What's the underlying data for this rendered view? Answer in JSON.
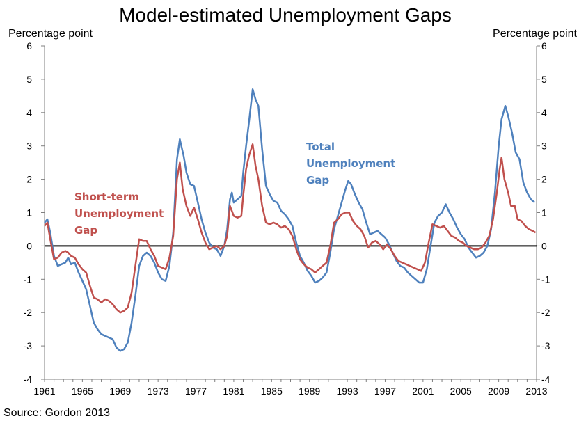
{
  "colors": {
    "total": "#4F81BD",
    "short": "#C0504D",
    "axis": "#7f7f7f",
    "zero": "#000000"
  },
  "chart_data": {
    "type": "line",
    "title": "Model-estimated Unemployment Gaps",
    "ylabel_left": "Percentage point",
    "ylabel_right": "Percentage point",
    "source": "Source: Gordon 2013",
    "xlim": [
      1961,
      2013
    ],
    "ylim": [
      -4,
      6
    ],
    "x_ticks": [
      1961,
      1965,
      1969,
      1973,
      1977,
      1981,
      1985,
      1989,
      1993,
      1997,
      2001,
      2005,
      2009,
      2013
    ],
    "y_ticks": [
      6,
      5,
      4,
      3,
      2,
      1,
      0,
      -1,
      -2,
      -3,
      -4
    ],
    "annotations": {
      "total": [
        "Total",
        "Unemployment",
        "Gap"
      ],
      "short": [
        "Short-term",
        "Unemployment",
        "Gap"
      ]
    },
    "series": [
      {
        "name": "Total Unemployment Gap",
        "color": "#4F81BD",
        "points": [
          [
            1961.0,
            0.7
          ],
          [
            1961.3,
            0.8
          ],
          [
            1961.6,
            0.4
          ],
          [
            1962.0,
            -0.3
          ],
          [
            1962.4,
            -0.6
          ],
          [
            1962.8,
            -0.55
          ],
          [
            1963.2,
            -0.5
          ],
          [
            1963.5,
            -0.35
          ],
          [
            1963.8,
            -0.55
          ],
          [
            1964.2,
            -0.5
          ],
          [
            1964.6,
            -0.8
          ],
          [
            1965.0,
            -1.05
          ],
          [
            1965.4,
            -1.3
          ],
          [
            1965.8,
            -1.8
          ],
          [
            1966.2,
            -2.3
          ],
          [
            1966.6,
            -2.5
          ],
          [
            1967.0,
            -2.65
          ],
          [
            1967.4,
            -2.7
          ],
          [
            1967.8,
            -2.75
          ],
          [
            1968.2,
            -2.8
          ],
          [
            1968.6,
            -3.05
          ],
          [
            1969.0,
            -3.15
          ],
          [
            1969.4,
            -3.1
          ],
          [
            1969.8,
            -2.9
          ],
          [
            1970.2,
            -2.3
          ],
          [
            1970.6,
            -1.5
          ],
          [
            1971.0,
            -0.6
          ],
          [
            1971.4,
            -0.3
          ],
          [
            1971.8,
            -0.2
          ],
          [
            1972.2,
            -0.3
          ],
          [
            1972.6,
            -0.5
          ],
          [
            1973.0,
            -0.8
          ],
          [
            1973.4,
            -1.0
          ],
          [
            1973.8,
            -1.05
          ],
          [
            1974.2,
            -0.6
          ],
          [
            1974.6,
            0.4
          ],
          [
            1975.0,
            2.6
          ],
          [
            1975.3,
            3.2
          ],
          [
            1975.7,
            2.7
          ],
          [
            1976.0,
            2.2
          ],
          [
            1976.4,
            1.85
          ],
          [
            1976.8,
            1.8
          ],
          [
            1977.2,
            1.3
          ],
          [
            1977.6,
            0.8
          ],
          [
            1978.0,
            0.4
          ],
          [
            1978.4,
            0.1
          ],
          [
            1978.8,
            -0.05
          ],
          [
            1979.2,
            -0.1
          ],
          [
            1979.6,
            -0.3
          ],
          [
            1980.0,
            0.0
          ],
          [
            1980.3,
            0.5
          ],
          [
            1980.6,
            1.4
          ],
          [
            1980.8,
            1.6
          ],
          [
            1981.0,
            1.3
          ],
          [
            1981.4,
            1.4
          ],
          [
            1981.8,
            1.5
          ],
          [
            1982.0,
            2.2
          ],
          [
            1982.3,
            3.0
          ],
          [
            1982.6,
            3.7
          ],
          [
            1982.8,
            4.2
          ],
          [
            1983.0,
            4.7
          ],
          [
            1983.3,
            4.4
          ],
          [
            1983.6,
            4.2
          ],
          [
            1984.0,
            2.9
          ],
          [
            1984.4,
            1.8
          ],
          [
            1984.8,
            1.55
          ],
          [
            1985.2,
            1.35
          ],
          [
            1985.6,
            1.3
          ],
          [
            1986.0,
            1.05
          ],
          [
            1986.4,
            0.95
          ],
          [
            1986.8,
            0.8
          ],
          [
            1987.2,
            0.6
          ],
          [
            1987.6,
            0.1
          ],
          [
            1988.0,
            -0.3
          ],
          [
            1988.4,
            -0.5
          ],
          [
            1988.8,
            -0.75
          ],
          [
            1989.2,
            -0.9
          ],
          [
            1989.6,
            -1.1
          ],
          [
            1990.0,
            -1.05
          ],
          [
            1990.4,
            -0.95
          ],
          [
            1990.8,
            -0.8
          ],
          [
            1991.2,
            -0.2
          ],
          [
            1991.6,
            0.5
          ],
          [
            1992.0,
            0.9
          ],
          [
            1992.4,
            1.3
          ],
          [
            1992.8,
            1.7
          ],
          [
            1993.1,
            1.95
          ],
          [
            1993.4,
            1.85
          ],
          [
            1993.8,
            1.55
          ],
          [
            1994.2,
            1.3
          ],
          [
            1994.6,
            1.1
          ],
          [
            1995.0,
            0.7
          ],
          [
            1995.4,
            0.35
          ],
          [
            1995.8,
            0.4
          ],
          [
            1996.2,
            0.45
          ],
          [
            1996.6,
            0.35
          ],
          [
            1997.0,
            0.25
          ],
          [
            1997.4,
            0.05
          ],
          [
            1997.8,
            -0.2
          ],
          [
            1998.2,
            -0.45
          ],
          [
            1998.6,
            -0.6
          ],
          [
            1999.0,
            -0.65
          ],
          [
            1999.4,
            -0.8
          ],
          [
            1999.8,
            -0.9
          ],
          [
            2000.2,
            -1.0
          ],
          [
            2000.6,
            -1.1
          ],
          [
            2001.0,
            -1.1
          ],
          [
            2001.4,
            -0.7
          ],
          [
            2001.8,
            0.0
          ],
          [
            2002.2,
            0.7
          ],
          [
            2002.6,
            0.9
          ],
          [
            2003.0,
            1.0
          ],
          [
            2003.4,
            1.25
          ],
          [
            2003.8,
            1.0
          ],
          [
            2004.2,
            0.8
          ],
          [
            2004.6,
            0.55
          ],
          [
            2005.0,
            0.35
          ],
          [
            2005.4,
            0.2
          ],
          [
            2005.8,
            -0.05
          ],
          [
            2006.2,
            -0.2
          ],
          [
            2006.6,
            -0.35
          ],
          [
            2007.0,
            -0.3
          ],
          [
            2007.4,
            -0.2
          ],
          [
            2007.8,
            0.0
          ],
          [
            2008.2,
            0.5
          ],
          [
            2008.6,
            1.6
          ],
          [
            2009.0,
            3.0
          ],
          [
            2009.3,
            3.8
          ],
          [
            2009.7,
            4.2
          ],
          [
            2010.0,
            3.9
          ],
          [
            2010.4,
            3.4
          ],
          [
            2010.8,
            2.8
          ],
          [
            2011.2,
            2.6
          ],
          [
            2011.6,
            1.9
          ],
          [
            2012.0,
            1.6
          ],
          [
            2012.4,
            1.4
          ],
          [
            2012.8,
            1.3
          ]
        ]
      },
      {
        "name": "Short-term Unemployment Gap",
        "color": "#C0504D",
        "points": [
          [
            1961.0,
            0.6
          ],
          [
            1961.3,
            0.7
          ],
          [
            1961.6,
            0.2
          ],
          [
            1962.0,
            -0.4
          ],
          [
            1962.4,
            -0.35
          ],
          [
            1962.8,
            -0.2
          ],
          [
            1963.2,
            -0.15
          ],
          [
            1963.5,
            -0.2
          ],
          [
            1963.8,
            -0.3
          ],
          [
            1964.2,
            -0.35
          ],
          [
            1964.6,
            -0.55
          ],
          [
            1965.0,
            -0.7
          ],
          [
            1965.4,
            -0.8
          ],
          [
            1965.8,
            -1.2
          ],
          [
            1966.2,
            -1.55
          ],
          [
            1966.6,
            -1.6
          ],
          [
            1967.0,
            -1.7
          ],
          [
            1967.4,
            -1.6
          ],
          [
            1967.8,
            -1.65
          ],
          [
            1968.2,
            -1.75
          ],
          [
            1968.6,
            -1.9
          ],
          [
            1969.0,
            -2.0
          ],
          [
            1969.4,
            -1.95
          ],
          [
            1969.8,
            -1.85
          ],
          [
            1970.2,
            -1.4
          ],
          [
            1970.6,
            -0.6
          ],
          [
            1971.0,
            0.2
          ],
          [
            1971.4,
            0.15
          ],
          [
            1971.8,
            0.15
          ],
          [
            1972.2,
            -0.1
          ],
          [
            1972.6,
            -0.3
          ],
          [
            1973.0,
            -0.6
          ],
          [
            1973.4,
            -0.65
          ],
          [
            1973.8,
            -0.7
          ],
          [
            1974.2,
            -0.35
          ],
          [
            1974.6,
            0.3
          ],
          [
            1975.0,
            2.0
          ],
          [
            1975.3,
            2.5
          ],
          [
            1975.6,
            1.7
          ],
          [
            1976.0,
            1.2
          ],
          [
            1976.4,
            0.9
          ],
          [
            1976.8,
            1.15
          ],
          [
            1977.2,
            0.8
          ],
          [
            1977.6,
            0.4
          ],
          [
            1978.0,
            0.1
          ],
          [
            1978.4,
            -0.1
          ],
          [
            1978.8,
            -0.05
          ],
          [
            1979.2,
            0.0
          ],
          [
            1979.6,
            -0.1
          ],
          [
            1980.0,
            0.0
          ],
          [
            1980.3,
            0.3
          ],
          [
            1980.6,
            1.2
          ],
          [
            1981.0,
            0.9
          ],
          [
            1981.4,
            0.85
          ],
          [
            1981.8,
            0.9
          ],
          [
            1982.0,
            1.5
          ],
          [
            1982.3,
            2.3
          ],
          [
            1982.6,
            2.7
          ],
          [
            1983.0,
            3.05
          ],
          [
            1983.3,
            2.4
          ],
          [
            1983.6,
            2.0
          ],
          [
            1984.0,
            1.2
          ],
          [
            1984.4,
            0.7
          ],
          [
            1984.8,
            0.65
          ],
          [
            1985.2,
            0.7
          ],
          [
            1985.6,
            0.65
          ],
          [
            1986.0,
            0.55
          ],
          [
            1986.4,
            0.6
          ],
          [
            1986.8,
            0.5
          ],
          [
            1987.2,
            0.3
          ],
          [
            1987.6,
            -0.1
          ],
          [
            1988.0,
            -0.4
          ],
          [
            1988.4,
            -0.55
          ],
          [
            1988.8,
            -0.65
          ],
          [
            1989.2,
            -0.7
          ],
          [
            1989.6,
            -0.8
          ],
          [
            1990.0,
            -0.7
          ],
          [
            1990.4,
            -0.6
          ],
          [
            1990.8,
            -0.5
          ],
          [
            1991.2,
            0.0
          ],
          [
            1991.6,
            0.7
          ],
          [
            1992.0,
            0.8
          ],
          [
            1992.4,
            0.95
          ],
          [
            1992.8,
            1.0
          ],
          [
            1993.2,
            1.0
          ],
          [
            1993.6,
            0.75
          ],
          [
            1994.0,
            0.6
          ],
          [
            1994.4,
            0.5
          ],
          [
            1994.8,
            0.3
          ],
          [
            1995.2,
            -0.05
          ],
          [
            1995.6,
            0.1
          ],
          [
            1996.0,
            0.15
          ],
          [
            1996.4,
            0.05
          ],
          [
            1996.8,
            -0.1
          ],
          [
            1997.2,
            0.05
          ],
          [
            1997.6,
            -0.1
          ],
          [
            1998.0,
            -0.3
          ],
          [
            1998.4,
            -0.45
          ],
          [
            1998.8,
            -0.5
          ],
          [
            1999.2,
            -0.55
          ],
          [
            1999.6,
            -0.6
          ],
          [
            2000.0,
            -0.65
          ],
          [
            2000.4,
            -0.7
          ],
          [
            2000.8,
            -0.75
          ],
          [
            2001.2,
            -0.5
          ],
          [
            2001.6,
            0.1
          ],
          [
            2002.0,
            0.65
          ],
          [
            2002.4,
            0.6
          ],
          [
            2002.8,
            0.55
          ],
          [
            2003.2,
            0.6
          ],
          [
            2003.6,
            0.45
          ],
          [
            2004.0,
            0.3
          ],
          [
            2004.4,
            0.25
          ],
          [
            2004.8,
            0.15
          ],
          [
            2005.2,
            0.1
          ],
          [
            2005.6,
            0.0
          ],
          [
            2006.0,
            -0.05
          ],
          [
            2006.4,
            -0.1
          ],
          [
            2006.8,
            -0.1
          ],
          [
            2007.2,
            -0.05
          ],
          [
            2007.6,
            0.1
          ],
          [
            2008.0,
            0.3
          ],
          [
            2008.4,
            0.8
          ],
          [
            2008.8,
            1.6
          ],
          [
            2009.1,
            2.3
          ],
          [
            2009.3,
            2.65
          ],
          [
            2009.6,
            2.0
          ],
          [
            2010.0,
            1.6
          ],
          [
            2010.3,
            1.2
          ],
          [
            2010.7,
            1.2
          ],
          [
            2011.0,
            0.8
          ],
          [
            2011.4,
            0.75
          ],
          [
            2011.8,
            0.6
          ],
          [
            2012.2,
            0.5
          ],
          [
            2012.6,
            0.45
          ],
          [
            2012.9,
            0.4
          ]
        ]
      }
    ]
  }
}
